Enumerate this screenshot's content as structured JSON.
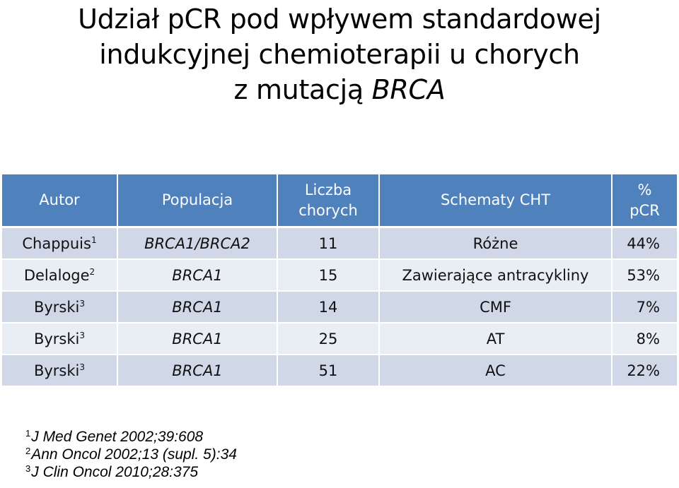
{
  "title": {
    "line1": "Udział pCR pod wpływem standardowej",
    "line2": "indukcyjnej chemioterapii u chorych",
    "line3_prefix": "z mutacją ",
    "line3_italic": "BRCA"
  },
  "table": {
    "headers": {
      "autor": "Autor",
      "populacja": "Populacja",
      "liczba_line1": "Liczba",
      "liczba_line2": "chorych",
      "schematy": "Schematy CHT",
      "pcr_line1": "%",
      "pcr_line2": "pCR"
    },
    "rows": [
      {
        "autor": "Chappuis",
        "ref": "1",
        "populacja": "BRCA1/BRCA2",
        "liczba": "11",
        "schemat": "Różne",
        "pcr": "44%"
      },
      {
        "autor": "Delaloge",
        "ref": "2",
        "populacja": "BRCA1",
        "liczba": "15",
        "schemat": "Zawierające antracykliny",
        "pcr": "53%"
      },
      {
        "autor": "Byrski",
        "ref": "3",
        "populacja": "BRCA1",
        "liczba": "14",
        "schemat": "CMF",
        "pcr": "7%"
      },
      {
        "autor": "Byrski",
        "ref": "3",
        "populacja": "BRCA1",
        "liczba": "25",
        "schemat": "AT",
        "pcr": "8%"
      },
      {
        "autor": "Byrski",
        "ref": "3",
        "populacja": "BRCA1",
        "liczba": "51",
        "schemat": "AC",
        "pcr": "22%"
      }
    ]
  },
  "references": [
    {
      "num": "1",
      "text": "J Med Genet 2002;39:608"
    },
    {
      "num": "2",
      "text": "Ann Oncol 2002;13 (supl. 5):34"
    },
    {
      "num": "3",
      "text": "J Clin Oncol 2010;28:375"
    }
  ],
  "colors": {
    "header_bg": "#4f81bd",
    "row_dark": "#d0d8e8",
    "row_light": "#e9edf4"
  }
}
